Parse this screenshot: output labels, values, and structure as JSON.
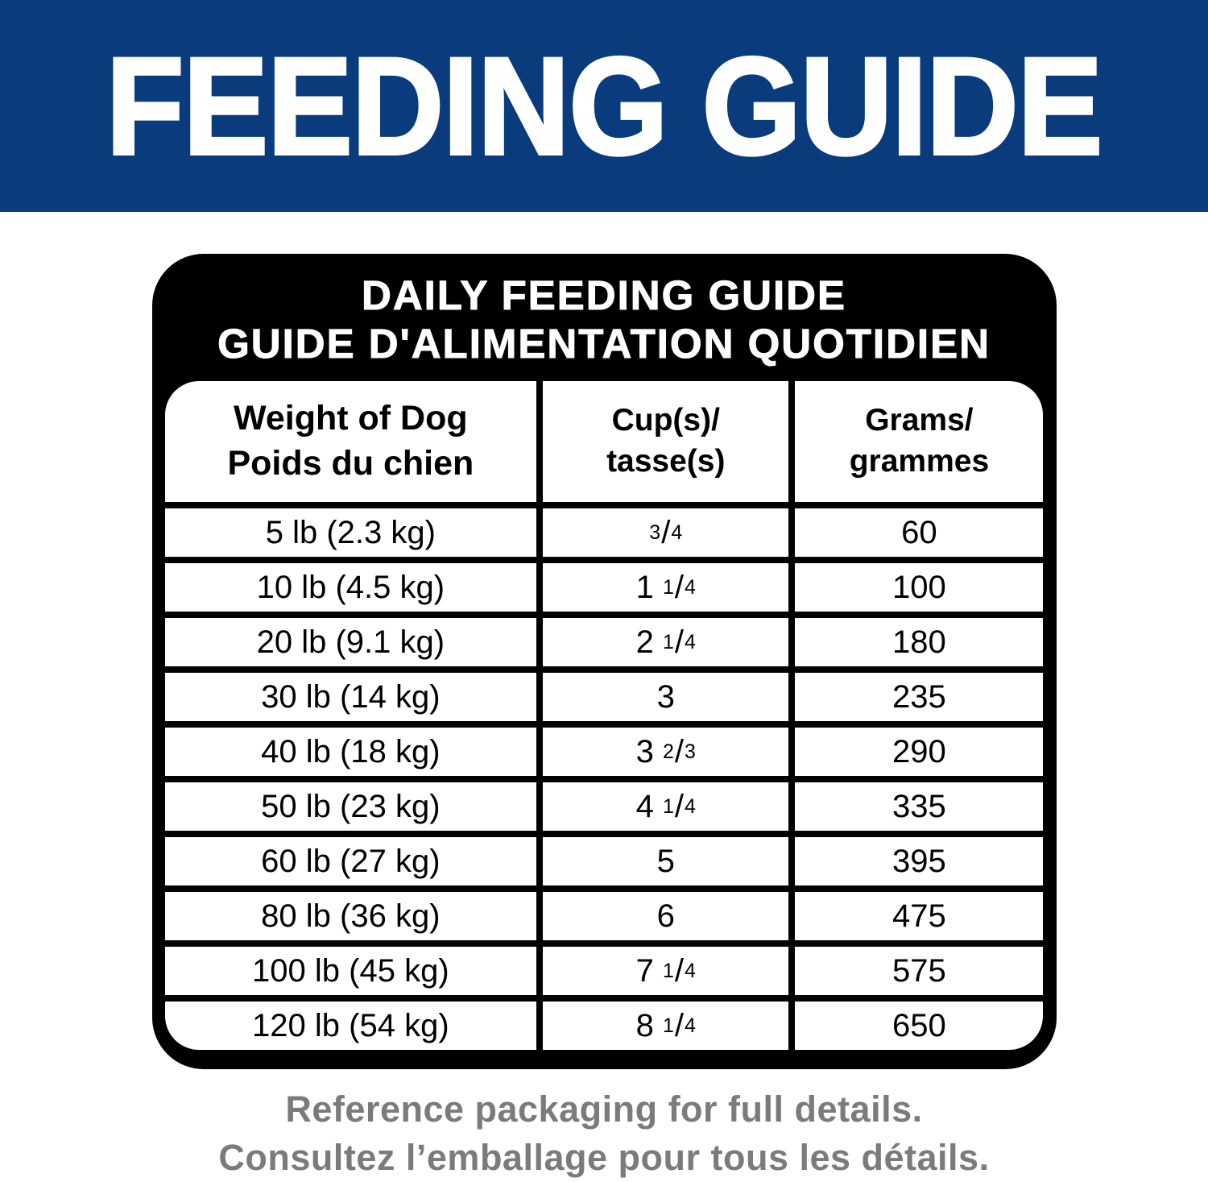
{
  "banner": {
    "title": "FEEDING GUIDE"
  },
  "card": {
    "title_line1": "DAILY FEEDING GUIDE",
    "title_line2": "GUIDE D'ALIMENTATION QUOTIDIEN"
  },
  "table": {
    "columns": [
      {
        "line1": "Weight of Dog",
        "line2": "Poids du chien"
      },
      {
        "line1": "Cup(s)/",
        "line2": "tasse(s)"
      },
      {
        "line1": "Grams/",
        "line2": "grammes"
      }
    ],
    "rows": [
      {
        "weight": "5 lb (2.3 kg)",
        "cups_whole": "",
        "cups_num": "3",
        "cups_den": "4",
        "grams": "60"
      },
      {
        "weight": "10 lb (4.5 kg)",
        "cups_whole": "1",
        "cups_num": "1",
        "cups_den": "4",
        "grams": "100"
      },
      {
        "weight": "20 lb (9.1 kg)",
        "cups_whole": "2",
        "cups_num": "1",
        "cups_den": "4",
        "grams": "180"
      },
      {
        "weight": "30 lb (14 kg)",
        "cups_whole": "3",
        "cups_num": "",
        "cups_den": "",
        "grams": "235"
      },
      {
        "weight": "40 lb (18 kg)",
        "cups_whole": "3",
        "cups_num": "2",
        "cups_den": "3",
        "grams": "290"
      },
      {
        "weight": "50 lb (23 kg)",
        "cups_whole": "4",
        "cups_num": "1",
        "cups_den": "4",
        "grams": "335"
      },
      {
        "weight": "60 lb (27 kg)",
        "cups_whole": "5",
        "cups_num": "",
        "cups_den": "",
        "grams": "395"
      },
      {
        "weight": "80 lb (36 kg)",
        "cups_whole": "6",
        "cups_num": "",
        "cups_den": "",
        "grams": "475"
      },
      {
        "weight": "100 lb (45 kg)",
        "cups_whole": "7",
        "cups_num": "1",
        "cups_den": "4",
        "grams": "575"
      },
      {
        "weight": "120 lb (54 kg)",
        "cups_whole": "8",
        "cups_num": "1",
        "cups_den": "4",
        "grams": "650"
      }
    ]
  },
  "footer": {
    "line1": "Reference packaging for full details.",
    "line2": "Consultez l’emballage pour tous les détails."
  },
  "colors": {
    "banner_bg": "#0a3b7c",
    "banner_text": "#ffffff",
    "card_bg": "#000000",
    "card_text": "#ffffff",
    "table_bg": "#ffffff",
    "table_text": "#000000",
    "footer_text": "#7b7b7b"
  }
}
